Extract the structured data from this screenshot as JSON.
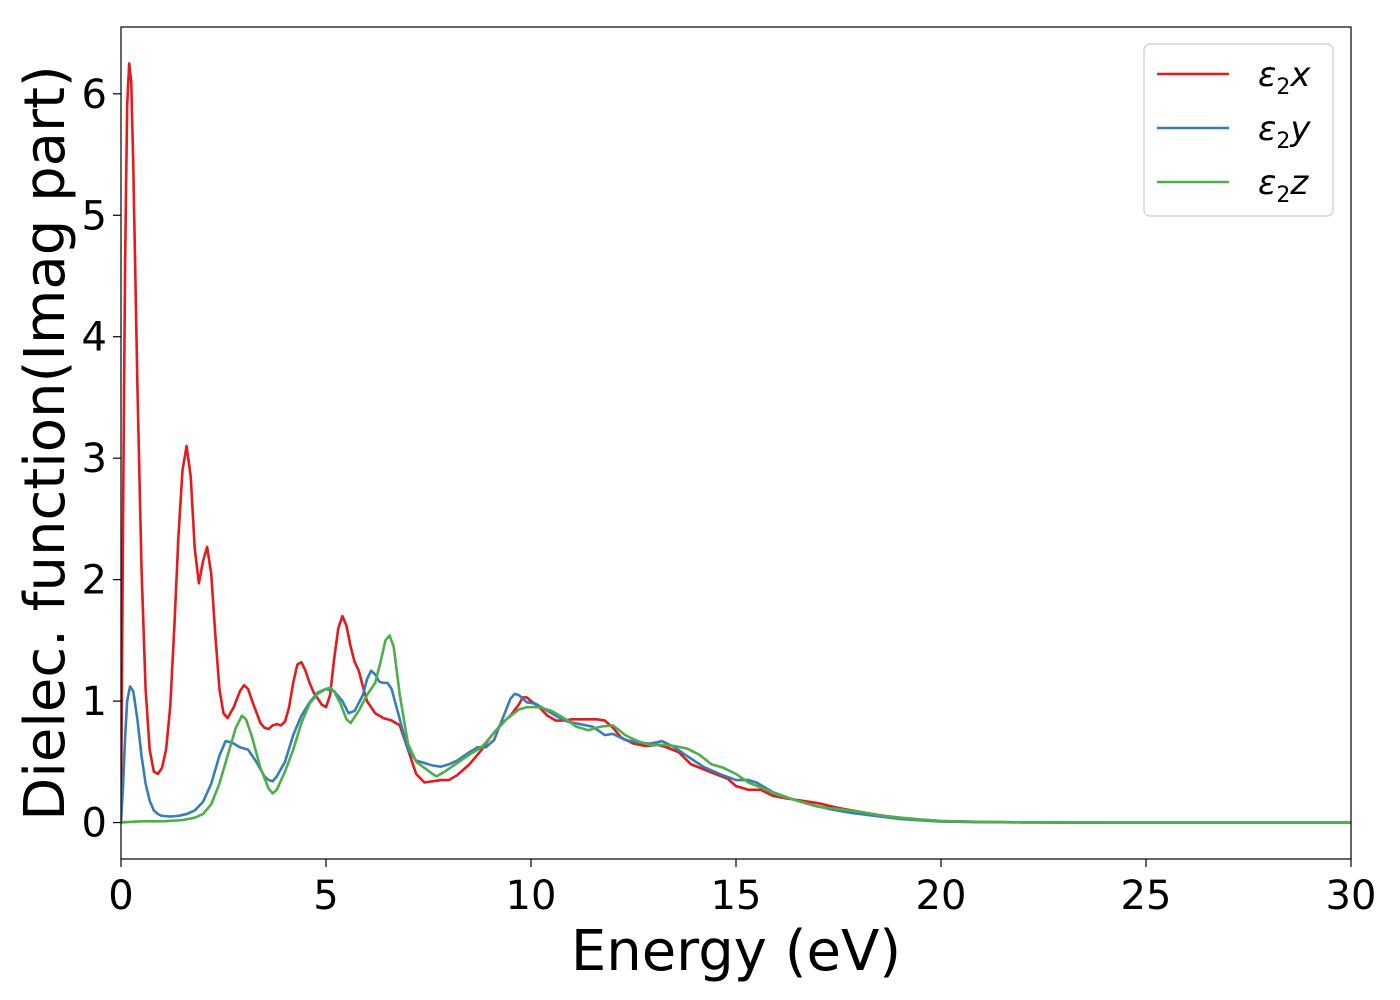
{
  "chart_data": {
    "type": "line",
    "xlabel": "Energy (eV)",
    "ylabel": "Dielec. function(Imag part)",
    "xlim": [
      0,
      30
    ],
    "ylim": [
      -0.3,
      6.55
    ],
    "xticks": [
      0,
      5,
      10,
      15,
      20,
      25,
      30
    ],
    "yticks": [
      0,
      1,
      2,
      3,
      4,
      5,
      6
    ],
    "legend_position": "top-right",
    "grid": false,
    "series": [
      {
        "name": "ε2x",
        "legend": {
          "sym": "ε",
          "sub": "2",
          "var": "x"
        },
        "color": "#e41a1c",
        "points": [
          [
            0,
            0
          ],
          [
            0.05,
            2.5
          ],
          [
            0.1,
            4.6
          ],
          [
            0.15,
            5.9
          ],
          [
            0.2,
            6.25
          ],
          [
            0.25,
            6.1
          ],
          [
            0.3,
            5.4
          ],
          [
            0.4,
            3.6
          ],
          [
            0.5,
            2.1
          ],
          [
            0.6,
            1.1
          ],
          [
            0.7,
            0.6
          ],
          [
            0.8,
            0.42
          ],
          [
            0.9,
            0.4
          ],
          [
            1.0,
            0.45
          ],
          [
            1.1,
            0.6
          ],
          [
            1.2,
            0.95
          ],
          [
            1.3,
            1.6
          ],
          [
            1.4,
            2.35
          ],
          [
            1.5,
            2.9
          ],
          [
            1.6,
            3.1
          ],
          [
            1.7,
            2.85
          ],
          [
            1.8,
            2.25
          ],
          [
            1.9,
            1.97
          ],
          [
            2.0,
            2.15
          ],
          [
            2.1,
            2.27
          ],
          [
            2.2,
            2.05
          ],
          [
            2.3,
            1.55
          ],
          [
            2.4,
            1.1
          ],
          [
            2.5,
            0.9
          ],
          [
            2.6,
            0.86
          ],
          [
            2.75,
            0.95
          ],
          [
            2.9,
            1.08
          ],
          [
            3.0,
            1.13
          ],
          [
            3.1,
            1.1
          ],
          [
            3.2,
            1.0
          ],
          [
            3.4,
            0.82
          ],
          [
            3.5,
            0.78
          ],
          [
            3.6,
            0.77
          ],
          [
            3.7,
            0.8
          ],
          [
            3.8,
            0.81
          ],
          [
            3.9,
            0.8
          ],
          [
            4.0,
            0.83
          ],
          [
            4.1,
            0.95
          ],
          [
            4.2,
            1.15
          ],
          [
            4.3,
            1.3
          ],
          [
            4.4,
            1.32
          ],
          [
            4.5,
            1.25
          ],
          [
            4.6,
            1.15
          ],
          [
            4.7,
            1.07
          ],
          [
            4.8,
            1.02
          ],
          [
            4.9,
            0.97
          ],
          [
            5.0,
            0.95
          ],
          [
            5.1,
            1.05
          ],
          [
            5.2,
            1.35
          ],
          [
            5.3,
            1.6
          ],
          [
            5.4,
            1.7
          ],
          [
            5.5,
            1.62
          ],
          [
            5.6,
            1.45
          ],
          [
            5.7,
            1.32
          ],
          [
            5.8,
            1.25
          ],
          [
            5.9,
            1.12
          ],
          [
            6.0,
            1.0
          ],
          [
            6.2,
            0.9
          ],
          [
            6.4,
            0.86
          ],
          [
            6.6,
            0.84
          ],
          [
            6.8,
            0.8
          ],
          [
            7.0,
            0.6
          ],
          [
            7.2,
            0.4
          ],
          [
            7.4,
            0.33
          ],
          [
            7.6,
            0.34
          ],
          [
            7.8,
            0.35
          ],
          [
            8.0,
            0.35
          ],
          [
            8.2,
            0.39
          ],
          [
            8.5,
            0.48
          ],
          [
            8.8,
            0.6
          ],
          [
            9.0,
            0.7
          ],
          [
            9.3,
            0.82
          ],
          [
            9.5,
            0.88
          ],
          [
            9.7,
            0.97
          ],
          [
            9.8,
            1.03
          ],
          [
            9.9,
            1.03
          ],
          [
            10.0,
            1.0
          ],
          [
            10.2,
            0.95
          ],
          [
            10.4,
            0.88
          ],
          [
            10.6,
            0.84
          ],
          [
            10.8,
            0.84
          ],
          [
            11.0,
            0.85
          ],
          [
            11.3,
            0.85
          ],
          [
            11.6,
            0.85
          ],
          [
            11.8,
            0.84
          ],
          [
            12.0,
            0.78
          ],
          [
            12.2,
            0.7
          ],
          [
            12.5,
            0.65
          ],
          [
            12.8,
            0.63
          ],
          [
            13.1,
            0.64
          ],
          [
            13.3,
            0.62
          ],
          [
            13.6,
            0.58
          ],
          [
            13.9,
            0.48
          ],
          [
            14.2,
            0.44
          ],
          [
            14.5,
            0.4
          ],
          [
            14.8,
            0.36
          ],
          [
            15.0,
            0.3
          ],
          [
            15.3,
            0.27
          ],
          [
            15.6,
            0.27
          ],
          [
            15.9,
            0.22
          ],
          [
            16.2,
            0.2
          ],
          [
            16.6,
            0.18
          ],
          [
            17.0,
            0.16
          ],
          [
            17.5,
            0.12
          ],
          [
            18.0,
            0.09
          ],
          [
            18.5,
            0.06
          ],
          [
            19.0,
            0.04
          ],
          [
            19.5,
            0.025
          ],
          [
            20.0,
            0.012
          ],
          [
            21.0,
            0.005
          ],
          [
            22.0,
            0.002
          ],
          [
            24.0,
            0.0
          ],
          [
            30.0,
            0.0
          ]
        ]
      },
      {
        "name": "ε2y",
        "legend": {
          "sym": "ε",
          "sub": "2",
          "var": "y"
        },
        "color": "#377eb8",
        "points": [
          [
            0,
            0
          ],
          [
            0.05,
            0.3
          ],
          [
            0.1,
            0.7
          ],
          [
            0.15,
            1.0
          ],
          [
            0.22,
            1.12
          ],
          [
            0.3,
            1.08
          ],
          [
            0.4,
            0.85
          ],
          [
            0.5,
            0.55
          ],
          [
            0.6,
            0.32
          ],
          [
            0.7,
            0.18
          ],
          [
            0.8,
            0.1
          ],
          [
            0.9,
            0.07
          ],
          [
            1.0,
            0.055
          ],
          [
            1.2,
            0.05
          ],
          [
            1.4,
            0.055
          ],
          [
            1.6,
            0.07
          ],
          [
            1.8,
            0.1
          ],
          [
            2.0,
            0.17
          ],
          [
            2.2,
            0.32
          ],
          [
            2.4,
            0.55
          ],
          [
            2.55,
            0.67
          ],
          [
            2.7,
            0.66
          ],
          [
            2.9,
            0.62
          ],
          [
            3.1,
            0.6
          ],
          [
            3.3,
            0.5
          ],
          [
            3.5,
            0.38
          ],
          [
            3.6,
            0.35
          ],
          [
            3.7,
            0.34
          ],
          [
            3.8,
            0.38
          ],
          [
            4.0,
            0.5
          ],
          [
            4.2,
            0.72
          ],
          [
            4.4,
            0.88
          ],
          [
            4.6,
            0.99
          ],
          [
            4.8,
            1.07
          ],
          [
            5.0,
            1.1
          ],
          [
            5.2,
            1.08
          ],
          [
            5.4,
            1.0
          ],
          [
            5.55,
            0.9
          ],
          [
            5.7,
            0.92
          ],
          [
            5.9,
            1.05
          ],
          [
            6.0,
            1.18
          ],
          [
            6.1,
            1.25
          ],
          [
            6.2,
            1.22
          ],
          [
            6.3,
            1.16
          ],
          [
            6.4,
            1.15
          ],
          [
            6.5,
            1.15
          ],
          [
            6.6,
            1.1
          ],
          [
            6.8,
            0.85
          ],
          [
            7.0,
            0.6
          ],
          [
            7.2,
            0.51
          ],
          [
            7.4,
            0.49
          ],
          [
            7.6,
            0.47
          ],
          [
            7.8,
            0.46
          ],
          [
            8.0,
            0.48
          ],
          [
            8.2,
            0.51
          ],
          [
            8.5,
            0.58
          ],
          [
            8.7,
            0.62
          ],
          [
            8.9,
            0.62
          ],
          [
            9.1,
            0.68
          ],
          [
            9.3,
            0.85
          ],
          [
            9.5,
            1.02
          ],
          [
            9.6,
            1.06
          ],
          [
            9.7,
            1.05
          ],
          [
            9.9,
            0.99
          ],
          [
            10.1,
            0.98
          ],
          [
            10.3,
            0.94
          ],
          [
            10.6,
            0.88
          ],
          [
            10.9,
            0.83
          ],
          [
            11.2,
            0.81
          ],
          [
            11.5,
            0.79
          ],
          [
            11.8,
            0.72
          ],
          [
            12.0,
            0.73
          ],
          [
            12.3,
            0.68
          ],
          [
            12.6,
            0.66
          ],
          [
            12.9,
            0.65
          ],
          [
            13.2,
            0.67
          ],
          [
            13.5,
            0.62
          ],
          [
            13.8,
            0.55
          ],
          [
            14.2,
            0.46
          ],
          [
            14.6,
            0.4
          ],
          [
            15.0,
            0.35
          ],
          [
            15.3,
            0.35
          ],
          [
            15.5,
            0.33
          ],
          [
            15.9,
            0.25
          ],
          [
            16.3,
            0.2
          ],
          [
            16.8,
            0.15
          ],
          [
            17.3,
            0.11
          ],
          [
            17.8,
            0.08
          ],
          [
            18.5,
            0.05
          ],
          [
            19.0,
            0.03
          ],
          [
            19.5,
            0.018
          ],
          [
            20.0,
            0.008
          ],
          [
            21.0,
            0.003
          ],
          [
            23.0,
            0.0
          ],
          [
            30.0,
            0.0
          ]
        ]
      },
      {
        "name": "ε2z",
        "legend": {
          "sym": "ε",
          "sub": "2",
          "var": "z"
        },
        "color": "#4daf4a",
        "points": [
          [
            0,
            0
          ],
          [
            0.2,
            0.005
          ],
          [
            0.5,
            0.01
          ],
          [
            1.0,
            0.01
          ],
          [
            1.5,
            0.02
          ],
          [
            1.8,
            0.04
          ],
          [
            2.0,
            0.07
          ],
          [
            2.2,
            0.15
          ],
          [
            2.4,
            0.32
          ],
          [
            2.6,
            0.55
          ],
          [
            2.8,
            0.78
          ],
          [
            2.95,
            0.88
          ],
          [
            3.05,
            0.85
          ],
          [
            3.2,
            0.7
          ],
          [
            3.4,
            0.45
          ],
          [
            3.6,
            0.28
          ],
          [
            3.7,
            0.24
          ],
          [
            3.8,
            0.27
          ],
          [
            4.0,
            0.42
          ],
          [
            4.2,
            0.6
          ],
          [
            4.4,
            0.82
          ],
          [
            4.6,
            0.98
          ],
          [
            4.8,
            1.06
          ],
          [
            5.0,
            1.1
          ],
          [
            5.1,
            1.11
          ],
          [
            5.2,
            1.08
          ],
          [
            5.35,
            0.98
          ],
          [
            5.5,
            0.85
          ],
          [
            5.6,
            0.82
          ],
          [
            5.8,
            0.92
          ],
          [
            6.0,
            1.05
          ],
          [
            6.2,
            1.15
          ],
          [
            6.35,
            1.35
          ],
          [
            6.45,
            1.5
          ],
          [
            6.55,
            1.54
          ],
          [
            6.65,
            1.45
          ],
          [
            6.8,
            1.05
          ],
          [
            7.0,
            0.65
          ],
          [
            7.2,
            0.5
          ],
          [
            7.4,
            0.45
          ],
          [
            7.6,
            0.4
          ],
          [
            7.7,
            0.38
          ],
          [
            7.9,
            0.42
          ],
          [
            8.2,
            0.49
          ],
          [
            8.5,
            0.56
          ],
          [
            8.8,
            0.62
          ],
          [
            9.1,
            0.74
          ],
          [
            9.4,
            0.85
          ],
          [
            9.7,
            0.93
          ],
          [
            9.9,
            0.95
          ],
          [
            10.2,
            0.95
          ],
          [
            10.5,
            0.92
          ],
          [
            10.8,
            0.86
          ],
          [
            11.1,
            0.79
          ],
          [
            11.4,
            0.76
          ],
          [
            11.7,
            0.79
          ],
          [
            12.0,
            0.8
          ],
          [
            12.3,
            0.72
          ],
          [
            12.6,
            0.67
          ],
          [
            12.9,
            0.64
          ],
          [
            13.2,
            0.64
          ],
          [
            13.5,
            0.63
          ],
          [
            13.8,
            0.61
          ],
          [
            14.1,
            0.56
          ],
          [
            14.4,
            0.48
          ],
          [
            14.7,
            0.45
          ],
          [
            15.0,
            0.4
          ],
          [
            15.3,
            0.33
          ],
          [
            15.6,
            0.29
          ],
          [
            16.0,
            0.23
          ],
          [
            16.5,
            0.18
          ],
          [
            17.0,
            0.13
          ],
          [
            17.5,
            0.11
          ],
          [
            18.0,
            0.09
          ],
          [
            18.5,
            0.06
          ],
          [
            19.0,
            0.04
          ],
          [
            19.5,
            0.025
          ],
          [
            20.0,
            0.012
          ],
          [
            21.0,
            0.005
          ],
          [
            22.0,
            0.002
          ],
          [
            24.0,
            0.0
          ],
          [
            30.0,
            0.0
          ]
        ]
      }
    ]
  }
}
